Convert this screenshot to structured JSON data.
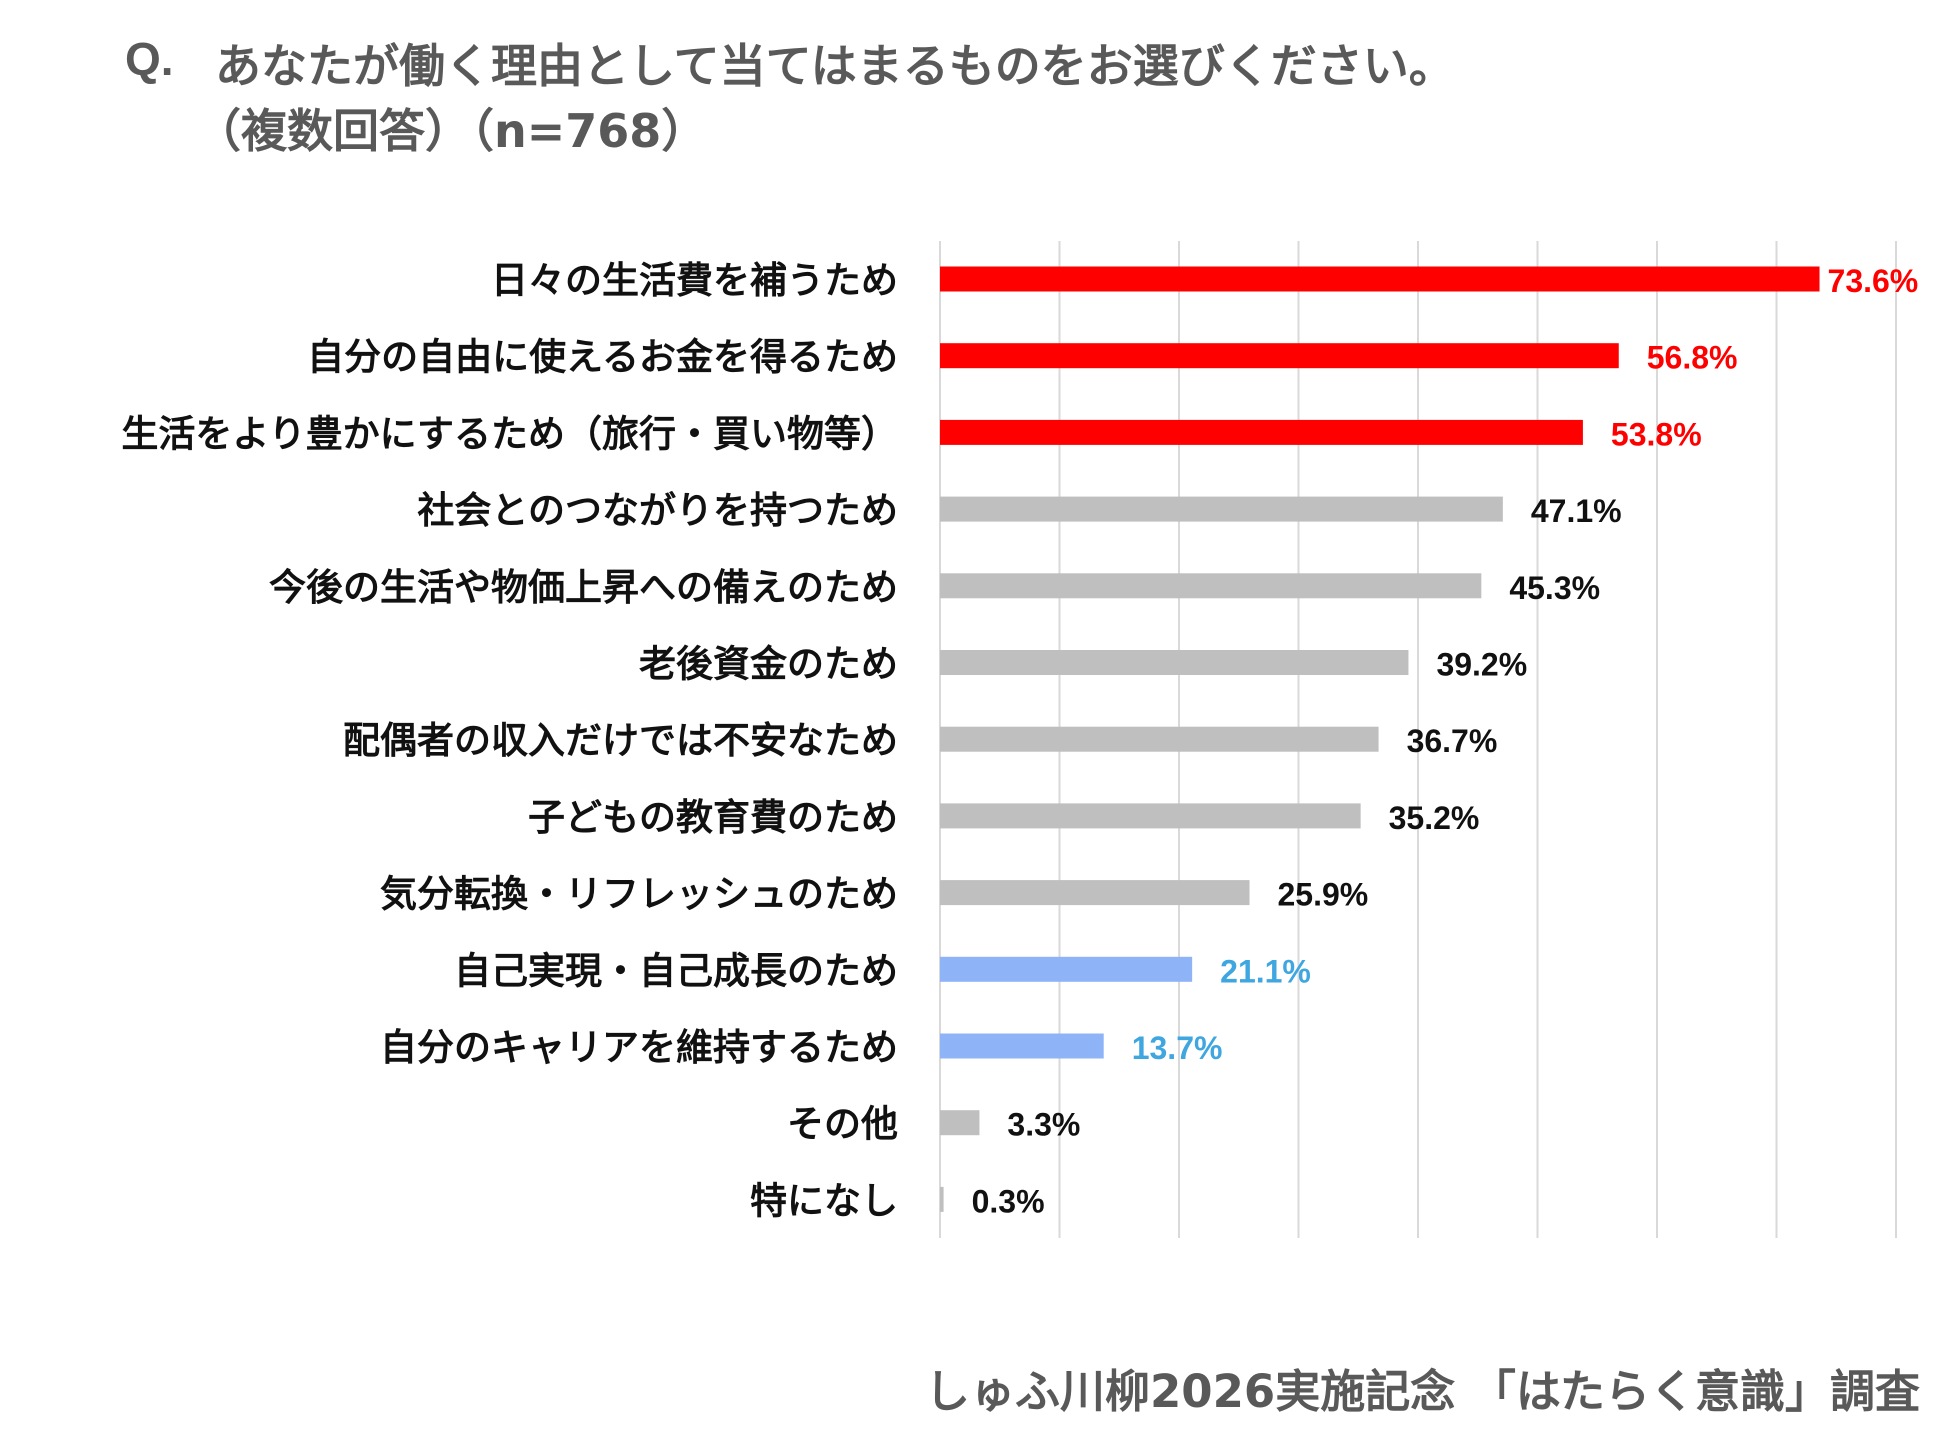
{
  "question": {
    "prefix": "Q.",
    "text": "あなたが働く理由として当てはまるものをお選びください。",
    "note": "（複数回答）（n=768）"
  },
  "chart_data": {
    "type": "bar",
    "orientation": "horizontal",
    "categories": [
      "日々の生活費を補うため",
      "自分の自由に使えるお金を得るため",
      "生活をより豊かにするため（旅行・買い物等）",
      "社会とのつながりを持つため",
      "今後の生活や物価上昇への備えのため",
      "老後資金のため",
      "配偶者の収入だけでは不安なため",
      "子どもの教育費のため",
      "気分転換・リフレッシュのため",
      "自己実現・自己成長のため",
      "自分のキャリアを維持するため",
      "その他",
      "特になし"
    ],
    "values": [
      73.6,
      56.8,
      53.8,
      47.1,
      45.3,
      39.2,
      36.7,
      35.2,
      25.9,
      21.1,
      13.7,
      3.3,
      0.3
    ],
    "labels": [
      "73.6%",
      "56.8%",
      "53.8%",
      "47.1%",
      "45.3%",
      "39.2%",
      "36.7%",
      "35.2%",
      "25.9%",
      "21.1%",
      "13.7%",
      "3.3%",
      "0.3%"
    ],
    "xlim": [
      0,
      80
    ],
    "grid": true,
    "bar_colors": [
      "#ff0000",
      "#ff0000",
      "#ff0000",
      "#bfbfbf",
      "#bfbfbf",
      "#bfbfbf",
      "#bfbfbf",
      "#bfbfbf",
      "#bfbfbf",
      "#8eb4f7",
      "#8eb4f7",
      "#bfbfbf",
      "#bfbfbf"
    ],
    "label_colors": [
      "#ff0000",
      "#ff0000",
      "#ff0000",
      "#111111",
      "#111111",
      "#111111",
      "#111111",
      "#111111",
      "#111111",
      "#3fa6e0",
      "#3fa6e0",
      "#111111",
      "#111111"
    ]
  },
  "footer": "しゅふ川柳2026実施記念 「はたらく意識」調査"
}
